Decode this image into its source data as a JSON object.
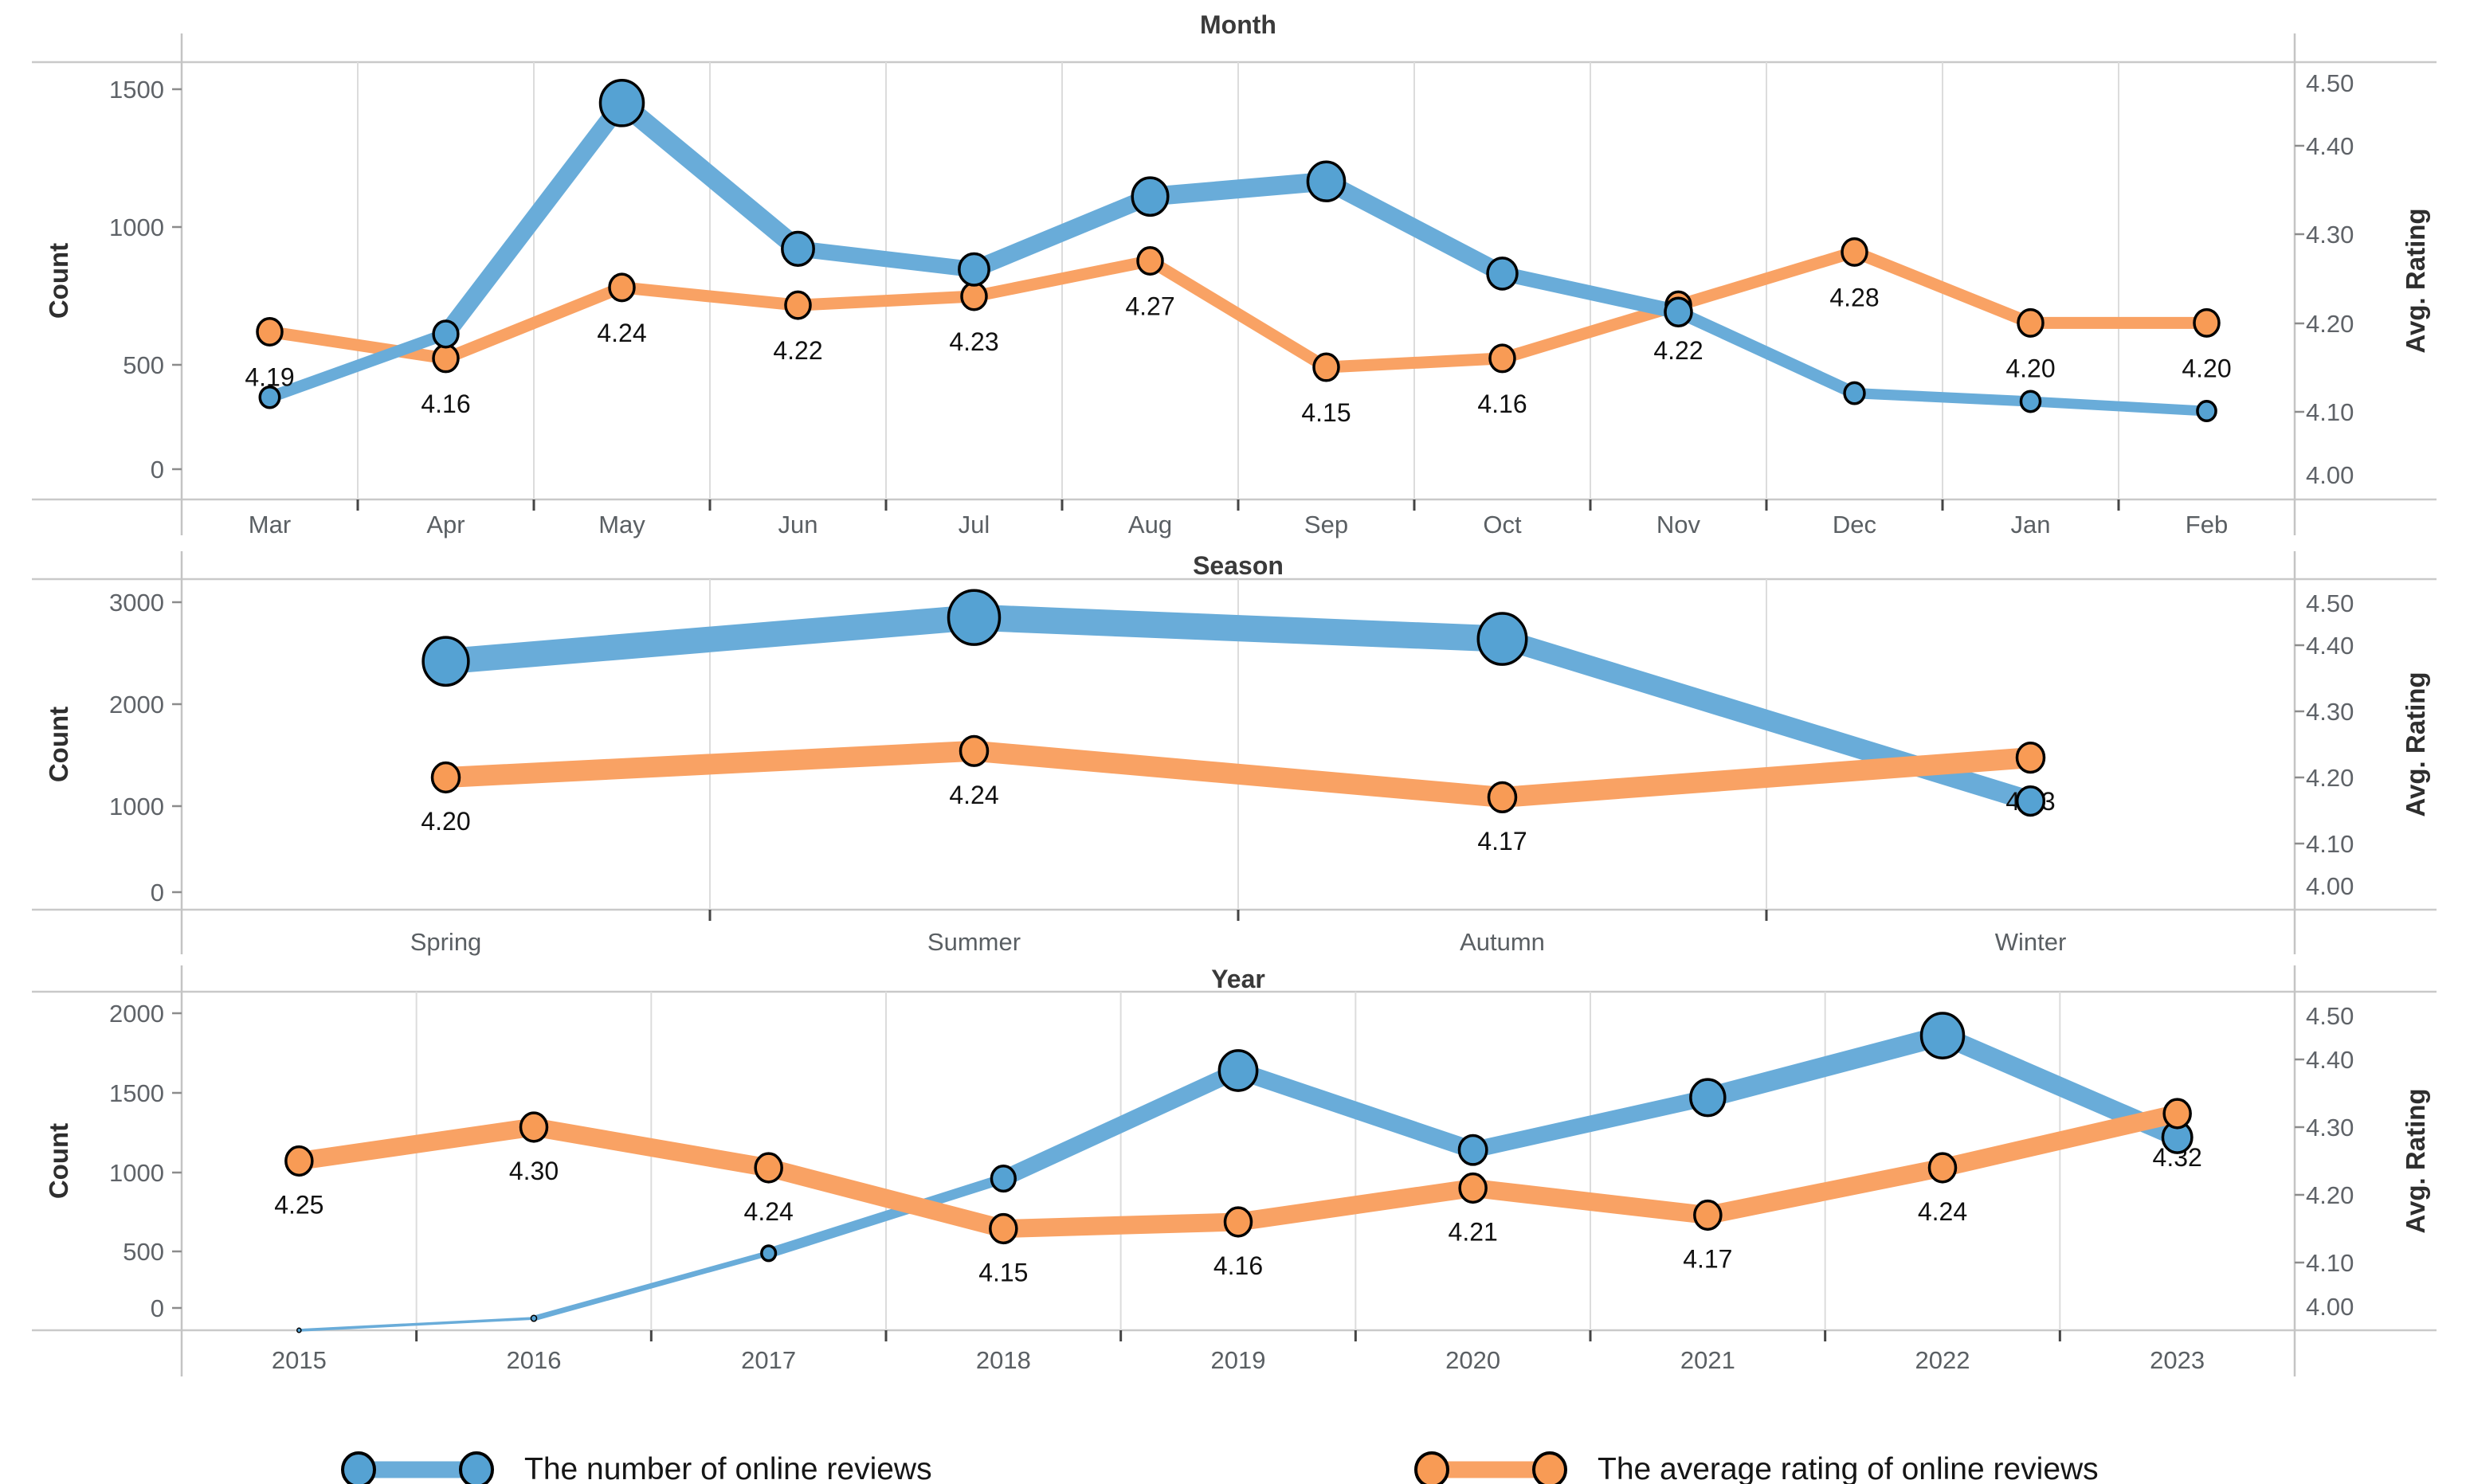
{
  "axes": {
    "left_title": "Count",
    "right_title": "Avg. Rating"
  },
  "legend": {
    "items": [
      {
        "key": "reviews",
        "label": "The number of online reviews",
        "color_key": "blue"
      },
      {
        "key": "rating",
        "label": "The average rating of online reviews",
        "color_key": "orange"
      }
    ]
  },
  "colors": {
    "blue_line": "#69ACD9",
    "blue_fill": "#55A2D3",
    "orange_line": "#F9A264",
    "orange_fill": "#F89B55",
    "marker_outline": "#000000",
    "grid": "#DCDCDC",
    "border": "#C9C9C9",
    "axis_line": "#C4C4C4",
    "tick": "#8C8C8C",
    "cat_tick": "#444444",
    "tick_label": "#5F6368",
    "cat_label": "#5A5F63",
    "title": "#3A3A3A",
    "axis_title": "#2E2E2E",
    "data_label": "#111111"
  },
  "chart_data": [
    {
      "type": "line",
      "title": "Month",
      "categories": [
        "Mar",
        "Apr",
        "May",
        "Jun",
        "Jul",
        "Aug",
        "Sep",
        "Oct",
        "Nov",
        "Dec",
        "Jan",
        "Feb"
      ],
      "series": [
        {
          "name": "The number of online reviews",
          "axis": "left",
          "values": [
            380,
            610,
            1450,
            920,
            845,
            1110,
            1165,
            830,
            690,
            395,
            365,
            330
          ]
        },
        {
          "name": "The average rating of online reviews",
          "axis": "right",
          "values": [
            4.19,
            4.16,
            4.24,
            4.22,
            4.23,
            4.27,
            4.15,
            4.16,
            4.22,
            4.28,
            4.2,
            4.2
          ],
          "labels": [
            "4.19",
            "4.16",
            "4.24",
            "4.22",
            "4.23",
            "4.27",
            "4.15",
            "4.16",
            "4.22",
            "4.28",
            "4.20",
            "4.20"
          ]
        }
      ],
      "left_axis": {
        "label": "Count",
        "ticks": [
          0,
          500,
          1000,
          1500
        ],
        "range": [
          0,
          1600
        ]
      },
      "right_axis": {
        "label": "Avg. Rating",
        "ticks": [
          4.0,
          4.1,
          4.2,
          4.3,
          4.4,
          4.5
        ],
        "range": [
          4.0,
          4.5
        ]
      },
      "grid": "vertical",
      "top_series": "reviews"
    },
    {
      "type": "line",
      "title": "Season",
      "categories": [
        "Spring",
        "Summer",
        "Autumn",
        "Winter"
      ],
      "series": [
        {
          "name": "The number of online reviews",
          "axis": "left",
          "values": [
            2420,
            2850,
            2640,
            1050
          ]
        },
        {
          "name": "The average rating of online reviews",
          "axis": "right",
          "values": [
            4.2,
            4.24,
            4.17,
            4.23
          ],
          "labels": [
            "4.20",
            "4.24",
            "4.17",
            "4.23"
          ]
        }
      ],
      "left_axis": {
        "label": "Count",
        "ticks": [
          0,
          1000,
          2000,
          3000
        ],
        "range": [
          0,
          3250
        ]
      },
      "right_axis": {
        "label": "Avg. Rating",
        "ticks": [
          4.0,
          4.1,
          4.2,
          4.3,
          4.4,
          4.5
        ],
        "range": [
          4.0,
          4.5
        ]
      },
      "grid": "vertical",
      "top_series": "rating"
    },
    {
      "type": "line",
      "title": "Year",
      "categories": [
        "2015",
        "2016",
        "2017",
        "2018",
        "2019",
        "2020",
        "2021",
        "2022",
        "2023"
      ],
      "series": [
        {
          "name": "The number of online reviews",
          "axis": "left",
          "values": [
            5,
            80,
            490,
            960,
            1640,
            1140,
            1470,
            1860,
            1220
          ]
        },
        {
          "name": "The average rating of online reviews",
          "axis": "right",
          "values": [
            4.25,
            4.3,
            4.24,
            4.15,
            4.16,
            4.21,
            4.17,
            4.24,
            4.32
          ],
          "labels": [
            "4.25",
            "4.30",
            "4.24",
            "4.15",
            "4.16",
            "4.21",
            "4.17",
            "4.24",
            "4.32"
          ]
        }
      ],
      "left_axis": {
        "label": "Count",
        "ticks": [
          0,
          500,
          1000,
          1500,
          2000
        ],
        "range": [
          0,
          2130
        ]
      },
      "right_axis": {
        "label": "Avg. Rating",
        "ticks": [
          4.0,
          4.1,
          4.2,
          4.3,
          4.4,
          4.5
        ],
        "range": [
          4.0,
          4.5
        ]
      },
      "grid": "vertical",
      "top_series": "rating"
    }
  ]
}
